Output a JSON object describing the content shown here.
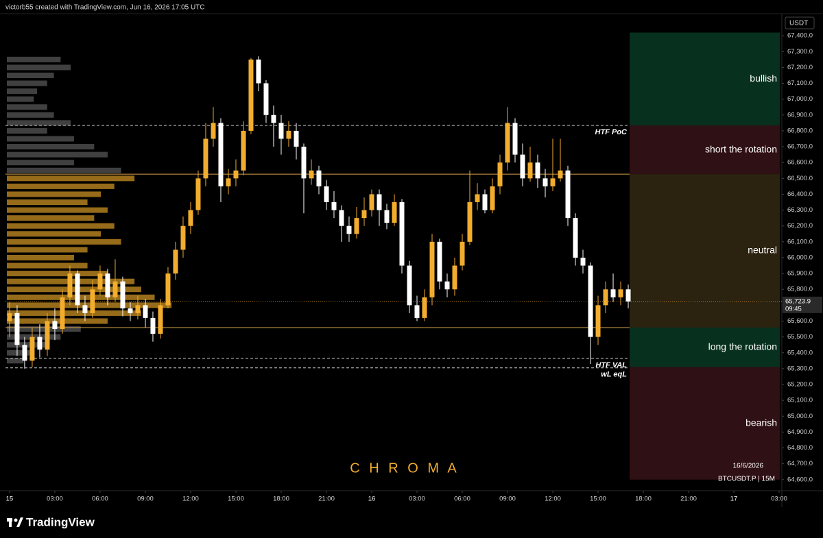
{
  "header": {
    "caption": "victorb55 created with TradingView.com, Jun 16, 2026 17:05 UTC"
  },
  "footer": {
    "brand": "TradingView"
  },
  "chart_data": {
    "type": "candlestick",
    "watermark": "C H R O M A",
    "date_label": "16/6/2026",
    "symbol_label": "BTCUSDT.P | 15M",
    "currency": "USDT",
    "up_color": "#f2ad2e",
    "down_color": "#ffffff",
    "xlim": [
      -0.27,
      51.18
    ],
    "ylim": [
      64530,
      67500
    ],
    "xticks": [
      {
        "value": 0,
        "label": "15"
      },
      {
        "value": 3,
        "label": "03:00"
      },
      {
        "value": 6,
        "label": "06:00"
      },
      {
        "value": 9,
        "label": "09:00"
      },
      {
        "value": 12,
        "label": "12:00"
      },
      {
        "value": 15,
        "label": "15:00"
      },
      {
        "value": 18,
        "label": "18:00"
      },
      {
        "value": 21,
        "label": "21:00"
      },
      {
        "value": 24,
        "label": "16"
      },
      {
        "value": 27,
        "label": "03:00"
      },
      {
        "value": 30,
        "label": "06:00"
      },
      {
        "value": 33,
        "label": "09:00"
      },
      {
        "value": 36,
        "label": "12:00"
      },
      {
        "value": 39,
        "label": "15:00"
      },
      {
        "value": 42,
        "label": "18:00"
      },
      {
        "value": 45,
        "label": "21:00"
      },
      {
        "value": 48,
        "label": "17"
      },
      {
        "value": 51,
        "label": "03:00"
      }
    ],
    "yticks": [
      {
        "value": 64600,
        "label": "64,600.0"
      },
      {
        "value": 64700,
        "label": "64,700.0"
      },
      {
        "value": 64800,
        "label": "64,800.0"
      },
      {
        "value": 64900,
        "label": "64,900.0"
      },
      {
        "value": 65000,
        "label": "65,000.0"
      },
      {
        "value": 65100,
        "label": "65,100.0"
      },
      {
        "value": 65200,
        "label": "65,200.0"
      },
      {
        "value": 65300,
        "label": "65,300.0"
      },
      {
        "value": 65400,
        "label": "65,400.0"
      },
      {
        "value": 65500,
        "label": "65,500.0"
      },
      {
        "value": 65600,
        "label": "65,600.0"
      },
      {
        "value": 65700,
        "label": "65,700.0"
      },
      {
        "value": 65800,
        "label": "65,800.0"
      },
      {
        "value": 65900,
        "label": "65,900.0"
      },
      {
        "value": 66000,
        "label": "66,000.0"
      },
      {
        "value": 66100,
        "label": "66,100.0"
      },
      {
        "value": 66200,
        "label": "66,200.0"
      },
      {
        "value": 66300,
        "label": "66,300.0"
      },
      {
        "value": 66400,
        "label": "66,400.0"
      },
      {
        "value": 66500,
        "label": "66,500.0"
      },
      {
        "value": 66600,
        "label": "66,600.0"
      },
      {
        "value": 66700,
        "label": "66,700.0"
      },
      {
        "value": 66800,
        "label": "66,800.0"
      },
      {
        "value": 66900,
        "label": "66,900.0"
      },
      {
        "value": 67000,
        "label": "67,000.0"
      },
      {
        "value": 67100,
        "label": "67,100.0"
      },
      {
        "value": 67200,
        "label": "67,200.0"
      },
      {
        "value": 67300,
        "label": "67,300.0"
      },
      {
        "value": 67400,
        "label": "67,400.0"
      }
    ],
    "x": [
      0,
      0.5,
      1,
      1.5,
      2,
      2.5,
      3,
      3.5,
      4,
      4.5,
      5,
      5.5,
      6,
      6.5,
      7,
      7.5,
      8,
      8.5,
      9,
      9.5,
      10,
      10.5,
      11,
      11.5,
      12,
      12.5,
      13,
      13.5,
      14,
      14.5,
      15,
      15.5,
      16,
      16.5,
      17,
      17.5,
      18,
      18.5,
      19,
      19.5,
      20,
      20.5,
      21,
      21.5,
      22,
      22.5,
      23,
      23.5,
      24,
      24.5,
      25,
      25.5,
      26,
      26.5,
      27,
      27.5,
      28,
      28.5,
      29,
      29.5,
      30,
      30.5,
      31,
      31.5,
      32,
      32.5,
      33,
      33.5,
      34,
      34.5,
      35,
      35.5,
      36,
      36.5,
      37,
      37.5,
      38,
      38.5,
      39,
      39.5,
      40,
      40.5,
      41
    ],
    "open": [
      65600,
      65650,
      65450,
      65350,
      65500,
      65420,
      65600,
      65550,
      65750,
      65900,
      65700,
      65650,
      65800,
      65900,
      65750,
      65850,
      65680,
      65650,
      65700,
      65620,
      65520,
      65700,
      65900,
      66050,
      66200,
      66300,
      66500,
      66750,
      66850,
      66450,
      66500,
      66550,
      66800,
      67250,
      67100,
      66900,
      66850,
      66750,
      66800,
      66700,
      66500,
      66550,
      66450,
      66350,
      66300,
      66200,
      66150,
      66250,
      66300,
      66400,
      66300,
      66220,
      66350,
      65950,
      65700,
      65620,
      65750,
      66100,
      65850,
      65800,
      65950,
      66100,
      66350,
      66400,
      66300,
      66450,
      66600,
      66850,
      66650,
      66500,
      66600,
      66500,
      66450,
      66500,
      66550,
      66250,
      66000,
      65950,
      65500,
      65700,
      65800,
      65750,
      65800
    ],
    "high": [
      65720,
      65700,
      65500,
      65560,
      65580,
      65650,
      65680,
      65800,
      65950,
      65920,
      65760,
      65860,
      65950,
      65930,
      65990,
      65880,
      65720,
      65760,
      65740,
      65660,
      65740,
      65940,
      66100,
      66260,
      66350,
      66550,
      66850,
      66950,
      66880,
      66560,
      66620,
      66860,
      67260,
      67270,
      67120,
      66960,
      66900,
      66860,
      66850,
      66720,
      66620,
      66580,
      66490,
      66420,
      66330,
      66260,
      66320,
      66380,
      66430,
      66430,
      66340,
      66400,
      66370,
      65980,
      65760,
      65800,
      66150,
      66120,
      65900,
      66000,
      66150,
      66550,
      66470,
      66430,
      66500,
      66650,
      66950,
      66880,
      66720,
      66700,
      66650,
      66560,
      66750,
      66750,
      66580,
      66280,
      66050,
      65970,
      65760,
      65850,
      65900,
      65850,
      65830
    ],
    "low": [
      65500,
      65380,
      65300,
      65310,
      65370,
      65380,
      65480,
      65520,
      65700,
      65650,
      65600,
      65620,
      65760,
      65700,
      65720,
      65630,
      65600,
      65610,
      65560,
      65470,
      65490,
      65680,
      65860,
      66000,
      66150,
      66270,
      66450,
      66700,
      66350,
      66400,
      66450,
      66520,
      66780,
      67050,
      66850,
      66700,
      66650,
      66700,
      66620,
      66280,
      66460,
      66400,
      66300,
      66250,
      66100,
      66100,
      66120,
      66200,
      66260,
      66200,
      66180,
      66200,
      65900,
      65650,
      65600,
      65600,
      65700,
      65800,
      65750,
      65760,
      65920,
      66080,
      66300,
      66280,
      66280,
      66400,
      66550,
      66600,
      66450,
      66480,
      66440,
      66380,
      66420,
      66480,
      66200,
      65950,
      65900,
      65330,
      65450,
      65650,
      65720,
      65700,
      65680
    ],
    "close": [
      65650,
      65450,
      65350,
      65500,
      65420,
      65600,
      65550,
      65750,
      65900,
      65700,
      65650,
      65800,
      65900,
      65750,
      65850,
      65680,
      65650,
      65700,
      65620,
      65520,
      65700,
      65900,
      66050,
      66200,
      66300,
      66500,
      66750,
      66850,
      66450,
      66500,
      66550,
      66800,
      67250,
      67100,
      66900,
      66850,
      66750,
      66800,
      66700,
      66500,
      66550,
      66450,
      66350,
      66300,
      66200,
      66150,
      66250,
      66300,
      66400,
      66300,
      66220,
      66350,
      65950,
      65700,
      65620,
      65750,
      66100,
      65850,
      65800,
      65950,
      66100,
      66350,
      66400,
      66300,
      66450,
      66600,
      66850,
      66650,
      66500,
      66600,
      66500,
      66450,
      66500,
      66550,
      66250,
      66000,
      65950,
      65500,
      65700,
      65800,
      65750,
      65800,
      65723.9
    ],
    "current_price": {
      "value": 65723.9,
      "label": "65,723.9",
      "countdown": "09:45"
    },
    "levels": [
      {
        "label": "HTF PoC",
        "value": 66834,
        "style": "dashed",
        "color": "#d0d0d0"
      },
      {
        "value": 66527,
        "style": "solid",
        "color": "#d9a04a"
      },
      {
        "value": 65559,
        "style": "solid",
        "color": "#d9a04a"
      },
      {
        "label": "HTF VAL",
        "value": 65365,
        "style": "dashed",
        "color": "#d0d0d0"
      },
      {
        "label": "wL eqL",
        "value": 65305,
        "style": "dashed",
        "color": "#d0d0d0"
      }
    ],
    "zones": [
      {
        "label": "bullish",
        "from": 67420,
        "to": 66834,
        "color": "#07301e"
      },
      {
        "label": "short the rotation",
        "from": 66834,
        "to": 66527,
        "color": "#2f1014"
      },
      {
        "label": "neutral",
        "from": 66527,
        "to": 65559,
        "color": "#2b2210"
      },
      {
        "label": "long the rotation",
        "from": 65559,
        "to": 65310,
        "color": "#07301e"
      },
      {
        "label": "bearish",
        "from": 65310,
        "to": 64600,
        "color": "#2f1014"
      }
    ],
    "volume_profile": {
      "inside_color": "#c88f22",
      "outside_color": "#555555",
      "prices": [
        67250,
        67200,
        67150,
        67100,
        67050,
        67000,
        66950,
        66900,
        66850,
        66800,
        66750,
        66700,
        66650,
        66600,
        66550,
        66500,
        66450,
        66400,
        66350,
        66300,
        66250,
        66200,
        66150,
        66100,
        66050,
        66000,
        65950,
        65900,
        65850,
        65800,
        65750,
        65700,
        65650,
        65600,
        65550,
        65500,
        65450,
        65400,
        65350
      ],
      "volumes": [
        80,
        95,
        70,
        60,
        45,
        40,
        60,
        70,
        95,
        60,
        100,
        130,
        150,
        100,
        170,
        190,
        160,
        140,
        120,
        150,
        130,
        160,
        140,
        170,
        120,
        100,
        120,
        150,
        190,
        200,
        220,
        245,
        200,
        150,
        110,
        80,
        60,
        40,
        25
      ]
    }
  }
}
